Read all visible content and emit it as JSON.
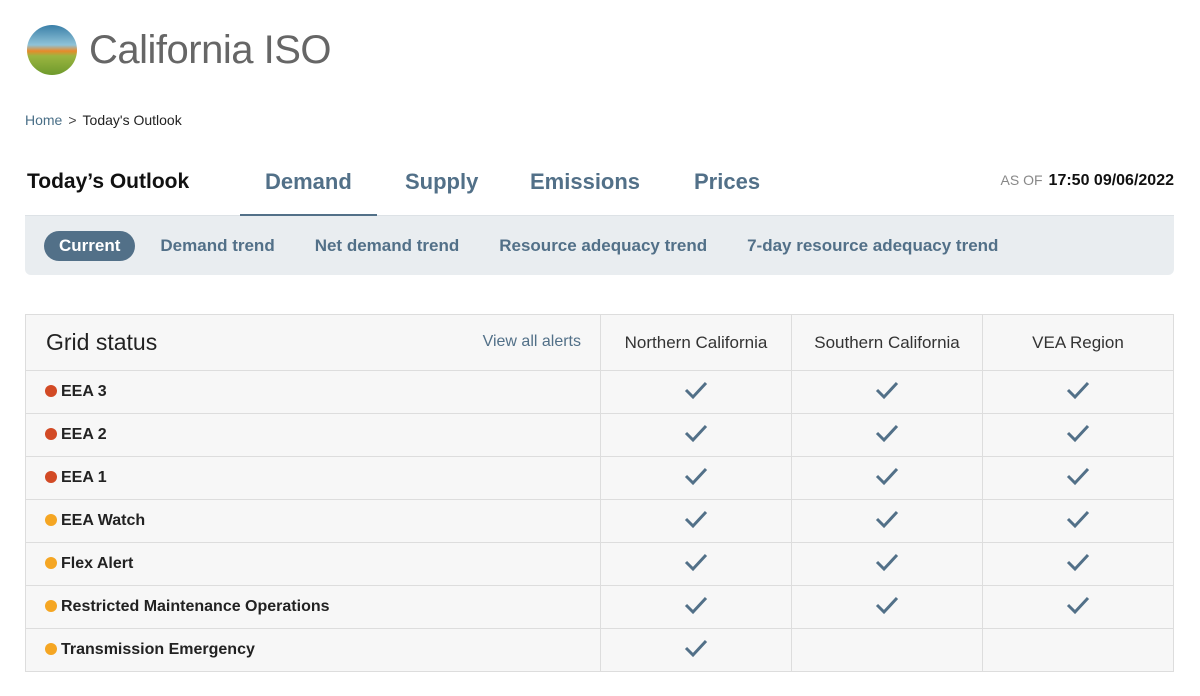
{
  "brand": {
    "name": "California ISO"
  },
  "breadcrumb": {
    "home": "Home",
    "sep": ">",
    "current": "Today's Outlook"
  },
  "header": {
    "title": "Today’s Outlook",
    "tabs": [
      "Demand",
      "Supply",
      "Emissions",
      "Prices"
    ],
    "active_tab": "Demand",
    "as_of_label": "AS OF",
    "as_of_value": "17:50 09/06/2022"
  },
  "subnav": {
    "items": [
      "Current",
      "Demand trend",
      "Net demand trend",
      "Resource adequacy trend",
      "7-day resource adequacy trend"
    ],
    "active": "Current"
  },
  "colors": {
    "accent": "#527088",
    "red": "#d24a25",
    "orange": "#f5a623"
  },
  "grid": {
    "title": "Grid status",
    "view_all": "View all alerts",
    "columns": [
      "Northern California",
      "Southern California",
      "VEA Region"
    ],
    "rows": [
      {
        "label": "EEA 3",
        "color": "red",
        "checks": [
          true,
          true,
          true
        ]
      },
      {
        "label": "EEA 2",
        "color": "red",
        "checks": [
          true,
          true,
          true
        ]
      },
      {
        "label": "EEA 1",
        "color": "red",
        "checks": [
          true,
          true,
          true
        ]
      },
      {
        "label": "EEA Watch",
        "color": "orange",
        "checks": [
          true,
          true,
          true
        ]
      },
      {
        "label": "Flex Alert",
        "color": "orange",
        "checks": [
          true,
          true,
          true
        ]
      },
      {
        "label": "Restricted Maintenance Operations",
        "color": "orange",
        "checks": [
          true,
          true,
          true
        ]
      },
      {
        "label": "Transmission Emergency",
        "color": "orange",
        "checks": [
          true,
          false,
          false
        ]
      }
    ]
  }
}
